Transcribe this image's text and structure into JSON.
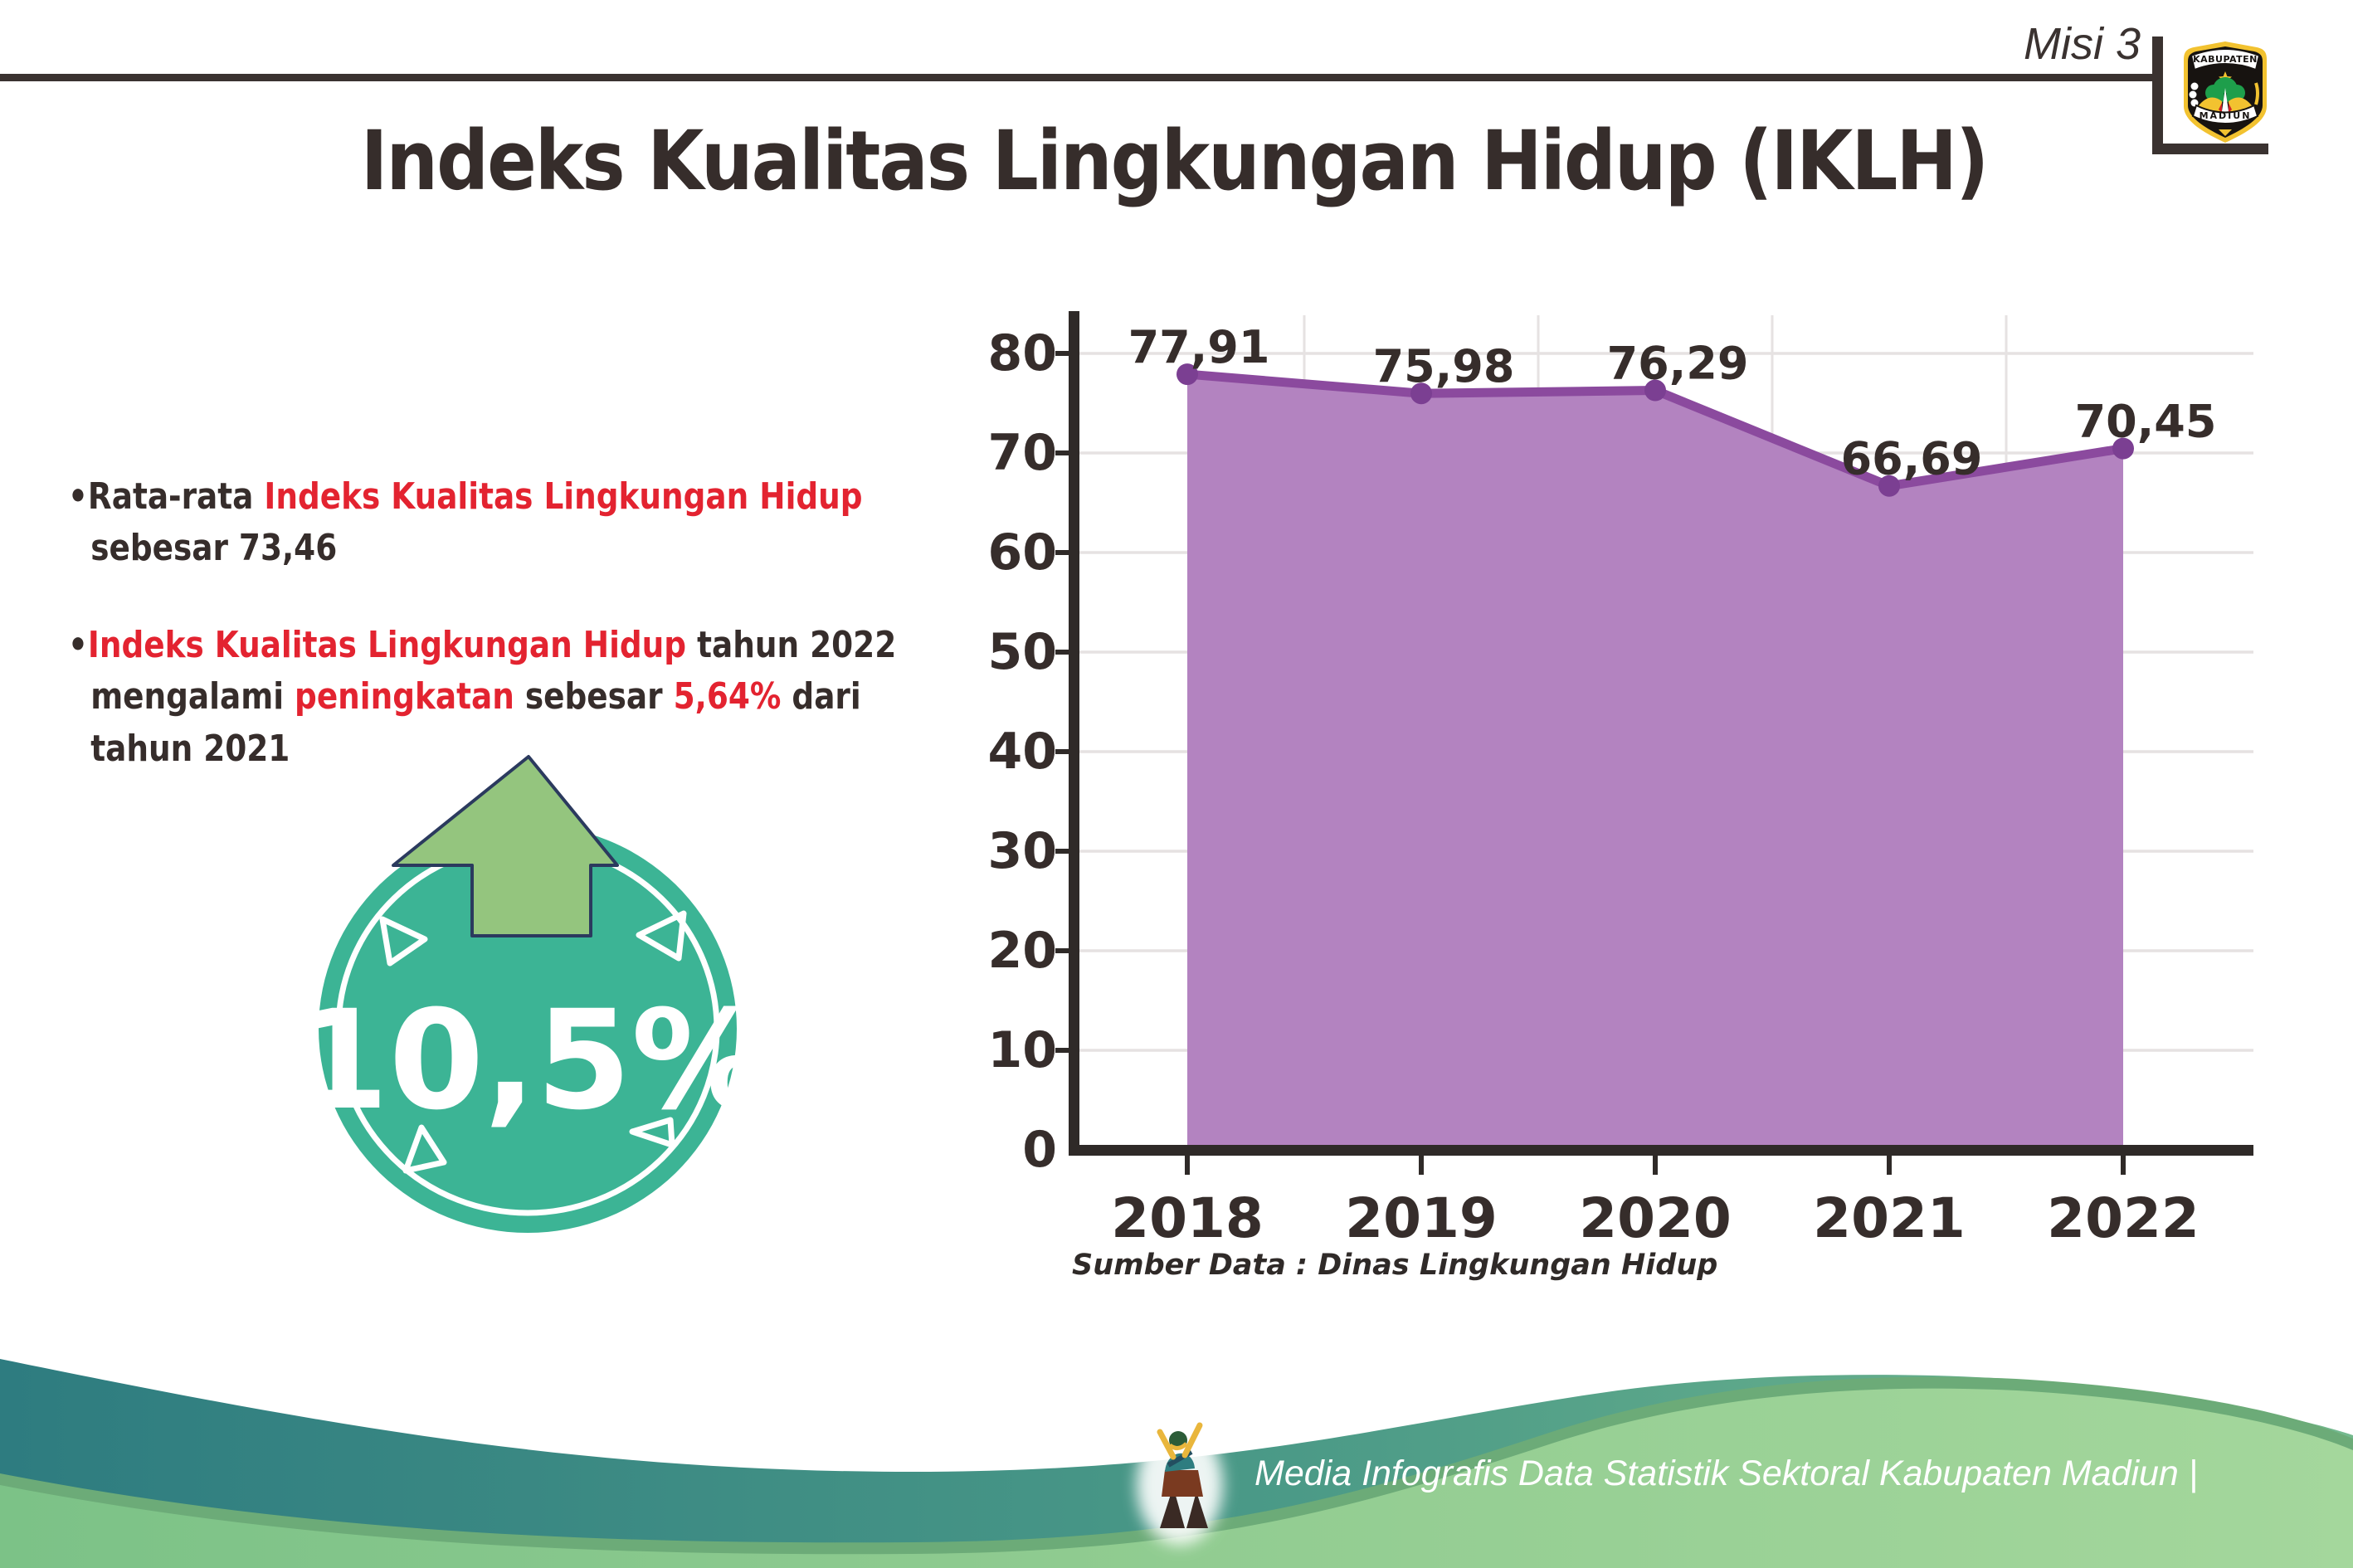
{
  "header": {
    "misi_label": "Misi 3",
    "title": "Indeks Kualitas Lingkungan Hidup (IKLH)",
    "logo_top": "KABUPATEN",
    "logo_bottom": "MADIUN"
  },
  "bullets": [
    {
      "lines": [
        [
          {
            "t": "•Rata-rata ",
            "c": "dark"
          },
          {
            "t": "Indeks Kualitas Lingkungan Hidup",
            "c": "red"
          }
        ],
        [
          {
            "t": "sebesar 73,46",
            "c": "dark"
          }
        ]
      ]
    },
    {
      "lines": [
        [
          {
            "t": "•",
            "c": "dark"
          },
          {
            "t": "Indeks Kualitas Lingkungan Hidup",
            "c": "red"
          },
          {
            "t": " tahun 2022",
            "c": "dark"
          }
        ],
        [
          {
            "t": "mengalami ",
            "c": "dark"
          },
          {
            "t": "peningkatan",
            "c": "red"
          },
          {
            "t": " sebesar ",
            "c": "dark"
          },
          {
            "t": "5,64%",
            "c": "red"
          },
          {
            "t": " dari",
            "c": "dark"
          }
        ],
        [
          {
            "t": "tahun 2021",
            "c": "dark"
          }
        ]
      ]
    }
  ],
  "badge": {
    "value": "10,5%"
  },
  "chart_data": {
    "type": "area",
    "categories": [
      "2018",
      "2019",
      "2020",
      "2021",
      "2022"
    ],
    "values": [
      77.91,
      75.98,
      76.29,
      66.69,
      70.45
    ],
    "labels": [
      "77,91",
      "75,98",
      "76,29",
      "66,69",
      "70,45"
    ],
    "title": "",
    "xlabel": "",
    "ylabel": "",
    "yticks": [
      0,
      10,
      20,
      30,
      40,
      50,
      60,
      70,
      80
    ],
    "ylim": [
      0,
      85
    ],
    "grid": true,
    "legend": "none",
    "source": "Sumber Data : Dinas Lingkungan Hidup"
  },
  "footer": {
    "credit": "Media Infografis Data Statistik Sektoral Kabupaten Madiun |"
  },
  "colors": {
    "dark_text": "#362d2b",
    "red_text": "#e32330",
    "area_fill": "#b383c0",
    "line": "#8b4a9e",
    "marker": "#7b3f92",
    "grid": "#e6e2e2",
    "axis": "#2f2a28",
    "badge_teal": "#3cb495",
    "arrow_green": "#94c57e",
    "footer_teal_dark": "#2e7c80",
    "footer_teal_light": "#74b98e",
    "footer_green_light": "#7cc287",
    "footer_green_pale": "#a4d79c",
    "footer_rim": "#6cab78"
  }
}
